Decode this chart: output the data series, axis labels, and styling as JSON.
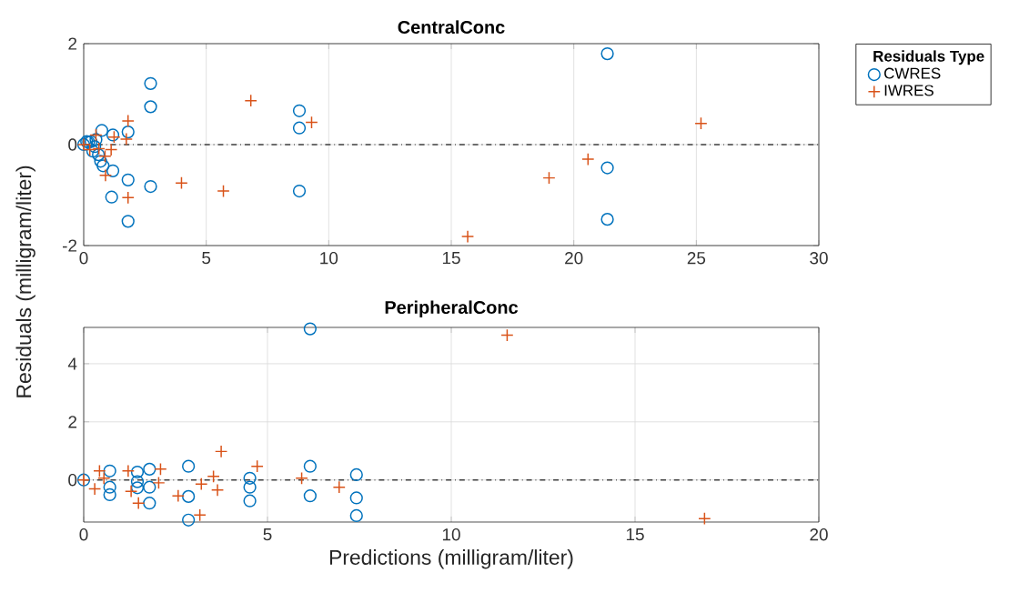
{
  "chart_data": [
    {
      "type": "scatter",
      "title": "CentralConc",
      "ylabel": "Residuals (milligram/liter)",
      "legend_title": "Residuals Type",
      "legend": "right",
      "grid": true,
      "xlim": [
        0,
        30
      ],
      "xticks": [
        0,
        5,
        10,
        15,
        20,
        25,
        30
      ],
      "ylim": [
        -2,
        2
      ],
      "yticks": [
        -2,
        0,
        2
      ],
      "ref_lines": [
        {
          "axis": "y",
          "value": 0,
          "color": "#404040",
          "line_style": "dashdot"
        }
      ],
      "series": [
        {
          "name": "CWRES",
          "color": "#0072bd",
          "marker": "circle",
          "x": [
            0,
            0.12,
            0.2,
            0.3,
            0.37,
            0.45,
            0.5,
            0.6,
            0.69,
            0.74,
            0.79,
            1.14,
            1.19,
            1.19,
            1.81,
            1.81,
            1.81,
            2.73,
            2.73,
            2.73,
            8.8,
            8.8,
            8.8,
            21.37,
            21.37,
            21.37
          ],
          "values": [
            0,
            0.06,
            0.05,
            0.06,
            -0.13,
            -0.04,
            0.1,
            -0.2,
            -0.33,
            0.28,
            -0.42,
            -1.04,
            0.19,
            -0.52,
            0.25,
            -0.7,
            -1.52,
            1.21,
            0.75,
            -0.83,
            0.67,
            0.33,
            -0.92,
            1.8,
            -0.46,
            -1.48
          ]
        },
        {
          "name": "IWRES",
          "color": "#d95319",
          "marker": "cross",
          "x": [
            0,
            0.25,
            0.5,
            0.62,
            0.87,
            0.89,
            1.12,
            1.24,
            1.74,
            1.81,
            1.81,
            3.99,
            5.7,
            6.82,
            9.3,
            15.67,
            18.99,
            20.58,
            25.19
          ],
          "values": [
            0,
            -0.1,
            0.19,
            -0.08,
            -0.23,
            -0.61,
            -0.1,
            0.15,
            0.11,
            0.47,
            -1.05,
            -0.76,
            -0.92,
            0.87,
            0.44,
            -1.82,
            -0.66,
            -0.29,
            0.42
          ]
        }
      ]
    },
    {
      "type": "scatter",
      "title": "PeripheralConc",
      "xlabel": "Predictions (milligram/liter)",
      "grid": true,
      "xlim": [
        0,
        20
      ],
      "xticks": [
        0,
        5,
        10,
        15,
        20
      ],
      "ylim": [
        -1.45,
        5.25
      ],
      "yticks": [
        0,
        2,
        4
      ],
      "ref_lines": [
        {
          "axis": "y",
          "value": 0,
          "color": "#404040",
          "line_style": "dashdot"
        }
      ],
      "series": [
        {
          "color": "#0072bd",
          "marker": "circle",
          "x": [
            0,
            0.71,
            0.71,
            0.71,
            1.46,
            1.46,
            1.46,
            1.79,
            1.79,
            1.79,
            2.85,
            2.85,
            2.85,
            4.52,
            4.52,
            4.52,
            6.16,
            6.16,
            6.16,
            7.42,
            7.42,
            7.42
          ],
          "values": [
            0,
            0.31,
            -0.25,
            -0.51,
            0.27,
            -0.06,
            -0.27,
            0.37,
            -0.25,
            -0.8,
            0.47,
            -0.57,
            -1.38,
            0.06,
            -0.25,
            -0.72,
            5.2,
            0.47,
            -0.55,
            0.18,
            -0.62,
            -1.23
          ]
        },
        {
          "color": "#d95319",
          "marker": "cross",
          "x": [
            0,
            0.3,
            0.43,
            0.55,
            1.21,
            1.29,
            1.49,
            2.04,
            2.09,
            2.57,
            3.16,
            3.2,
            3.53,
            3.64,
            3.74,
            4.72,
            5.93,
            6.95,
            11.52,
            16.89
          ],
          "values": [
            0,
            -0.31,
            0.31,
            0.06,
            0.31,
            -0.39,
            -0.8,
            -0.1,
            0.37,
            -0.55,
            -1.21,
            -0.14,
            0.12,
            -0.35,
            0.98,
            0.47,
            0.06,
            -0.25,
            4.98,
            -1.33
          ]
        }
      ]
    }
  ]
}
